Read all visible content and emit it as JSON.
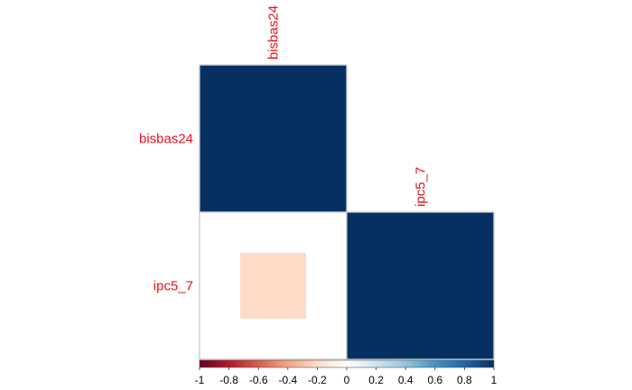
{
  "chart_data": {
    "type": "heatmap",
    "title": "",
    "variables": [
      "bisbas24",
      "ipc5_7"
    ],
    "matrix": [
      [
        1.0,
        -0.2
      ],
      [
        -0.2,
        1.0
      ]
    ],
    "display": "lower triangle, square glyphs sized by |r|",
    "row_labels": [
      "bisbas24",
      "ipc5_7"
    ],
    "col_labels": [
      "bisbas24",
      "ipc5_7"
    ],
    "colorbar": {
      "range": [
        -1,
        1
      ],
      "ticks": [
        "-1",
        "-0.8",
        "-0.6",
        "-0.4",
        "-0.2",
        "0",
        "0.2",
        "0.4",
        "0.6",
        "0.8",
        "1"
      ],
      "placement": "bottom"
    },
    "colors": {
      "label": "#e8111e",
      "cell_border": "#c8c8c8",
      "scale": [
        "#67001f",
        "#b2182b",
        "#d6604d",
        "#f4a582",
        "#fddbc7",
        "#ffffff",
        "#d1e5f0",
        "#92c5de",
        "#4393c3",
        "#2166ac",
        "#053061"
      ]
    }
  }
}
